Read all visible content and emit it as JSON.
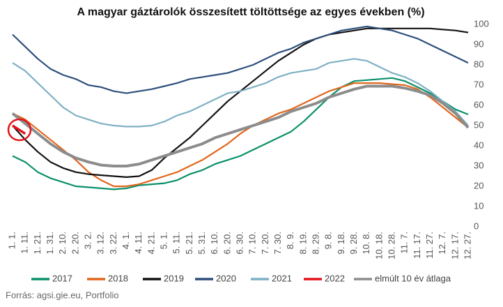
{
  "chart_data": {
    "type": "line",
    "title": "A magyar gáztárolók összesített töltöttsége az egyes években (%)",
    "source": "Forrás: agsi.gie.eu, Portfolio",
    "categories": [
      "1. 1.",
      "1. 11.",
      "1. 21.",
      "1. 31.",
      "2. 10.",
      "2. 20.",
      "3. 2.",
      "3. 12.",
      "3. 22.",
      "4. 1.",
      "4. 11.",
      "4. 21.",
      "5. 1.",
      "5. 11.",
      "5. 21.",
      "5. 31.",
      "6. 10.",
      "6. 20.",
      "6. 30.",
      "7. 10.",
      "7. 20.",
      "7. 30.",
      "8. 9.",
      "8. 19.",
      "8. 29.",
      "9. 8.",
      "9. 18.",
      "9. 28.",
      "10. 8.",
      "10. 18.",
      "10. 28.",
      "11. 7.",
      "11. 17.",
      "11. 27.",
      "12. 7.",
      "12. 17.",
      "12. 27."
    ],
    "ylim": [
      0,
      100
    ],
    "yticks": [
      0,
      10,
      20,
      30,
      40,
      50,
      60,
      70,
      80,
      90,
      100
    ],
    "grid": false,
    "legend": "bottom",
    "series": [
      {
        "name": "2017",
        "color": "#0a8f6a",
        "values": [
          35,
          32,
          27,
          24,
          22,
          20,
          19.5,
          19,
          18.5,
          19,
          20.5,
          21,
          21.5,
          23,
          26,
          28,
          31,
          33,
          35,
          38,
          41,
          44,
          47,
          52,
          58,
          64,
          69,
          72,
          72.5,
          73,
          73.5,
          72,
          69,
          66,
          62,
          58,
          55.5
        ]
      },
      {
        "name": "2018",
        "color": "#e0661c",
        "values": [
          56,
          53,
          48,
          43,
          38,
          33,
          27,
          23,
          20,
          20,
          21,
          23,
          25,
          27,
          30,
          33,
          37,
          41,
          46,
          50,
          53,
          56,
          58,
          61,
          64,
          67,
          69,
          71,
          71,
          71,
          70.5,
          70,
          68,
          64,
          59,
          54,
          49
        ]
      },
      {
        "name": "2019",
        "color": "#111111",
        "values": [
          50,
          43,
          37,
          32,
          29,
          27,
          26,
          25.5,
          25,
          24.5,
          25,
          28,
          34,
          39,
          44,
          50,
          56,
          62,
          67,
          72,
          77,
          82,
          86,
          90,
          93,
          95,
          96,
          97,
          98,
          98,
          98,
          98,
          98,
          98,
          97.5,
          97,
          96
        ]
      },
      {
        "name": "2020",
        "color": "#2d4f7c",
        "values": [
          95,
          89,
          83,
          78,
          75,
          73,
          70,
          69,
          67,
          66,
          67,
          68,
          69.5,
          71,
          73,
          74,
          75,
          76,
          78,
          80,
          83,
          86,
          88,
          91,
          93,
          95,
          97,
          98,
          99,
          98,
          97,
          95,
          93,
          90,
          87,
          84,
          81
        ]
      },
      {
        "name": "2021",
        "color": "#7fb0c4",
        "values": [
          81,
          77,
          71,
          65,
          59,
          55,
          53,
          51,
          50,
          49.5,
          49.5,
          50,
          52,
          55,
          57,
          60,
          63,
          66,
          67,
          69,
          71,
          74,
          76,
          77,
          78,
          81,
          82,
          83,
          82,
          79,
          76,
          74,
          71,
          67,
          62,
          57,
          50
        ]
      },
      {
        "name": "2022",
        "color": "#e3131b",
        "values": [
          50,
          46,
          null,
          null,
          null,
          null,
          null,
          null,
          null,
          null,
          null,
          null,
          null,
          null,
          null,
          null,
          null,
          null,
          null,
          null,
          null,
          null,
          null,
          null,
          null,
          null,
          null,
          null,
          null,
          null,
          null,
          null,
          null,
          null,
          null,
          null,
          null
        ]
      },
      {
        "name": "elmúlt 10 év átlaga",
        "color": "#8c8c8c",
        "values": [
          56,
          51,
          46,
          41,
          37,
          34,
          32,
          30.5,
          30,
          30,
          31,
          33,
          35,
          37,
          39,
          41,
          44,
          46,
          48,
          50,
          52,
          54,
          57,
          59,
          61,
          64,
          66,
          68,
          69.5,
          69.5,
          69.5,
          68.5,
          67,
          65,
          61,
          56,
          49
        ]
      }
    ]
  }
}
